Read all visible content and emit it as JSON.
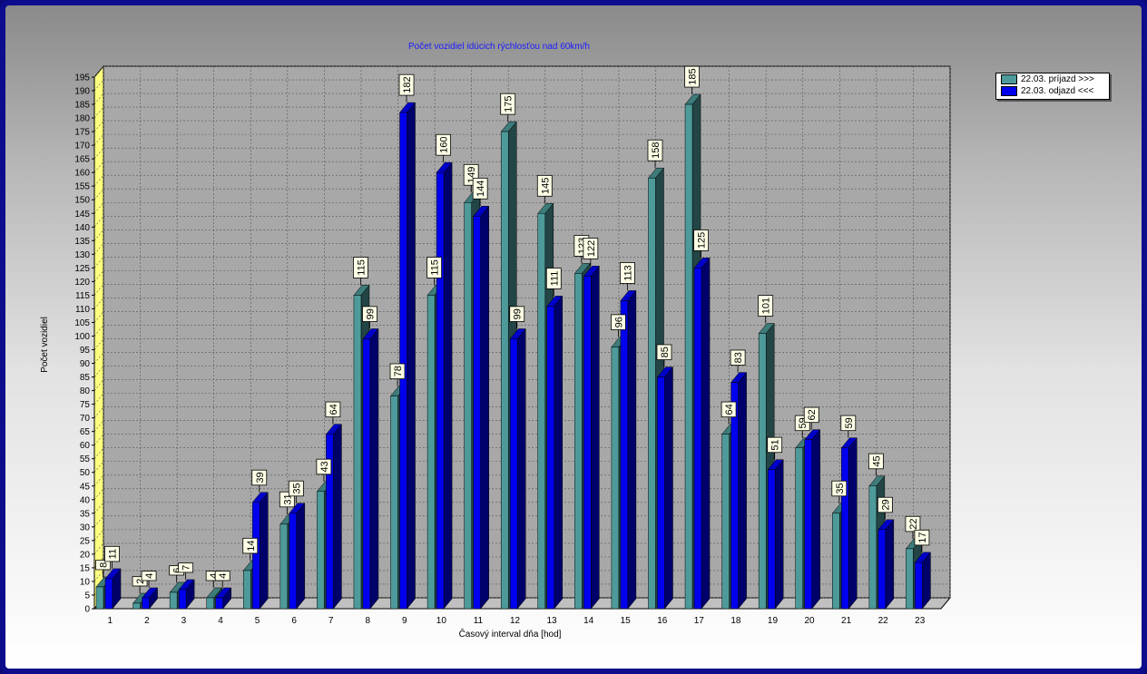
{
  "chart_data": {
    "type": "bar",
    "title": "Počet vozidiel idúcich rýchlosťou nad 60km/h",
    "xlabel": "Časový interval dňa [hod]",
    "ylabel": "Počet vozidiel",
    "ylim": [
      0,
      195
    ],
    "ytick_step": 5,
    "grid": true,
    "legend_position": "top-right",
    "categories": [
      "1",
      "2",
      "3",
      "4",
      "5",
      "6",
      "7",
      "8",
      "9",
      "10",
      "11",
      "12",
      "13",
      "14",
      "15",
      "16",
      "17",
      "18",
      "19",
      "20",
      "21",
      "22",
      "23"
    ],
    "series": [
      {
        "name": "22.03.  príjazd >>>",
        "color": "#4e9a9a",
        "values": [
          8,
          2,
          6,
          4,
          14,
          31,
          43,
          115,
          78,
          115,
          149,
          175,
          145,
          123,
          96,
          158,
          185,
          64,
          101,
          59,
          35,
          45,
          22
        ]
      },
      {
        "name": "22.03.  odjazd <<<",
        "color": "#0000ee",
        "values": [
          11,
          4,
          7,
          4,
          39,
          35,
          64,
          99,
          182,
          160,
          144,
          99,
          111,
          122,
          113,
          85,
          125,
          83,
          51,
          62,
          59,
          29,
          17
        ]
      }
    ]
  }
}
